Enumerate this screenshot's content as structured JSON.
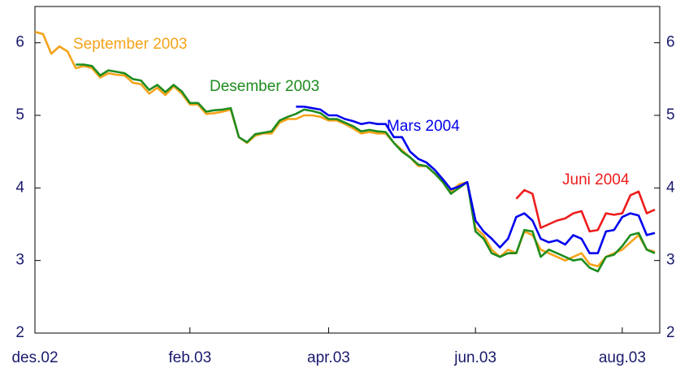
{
  "chart_data": {
    "type": "line",
    "categories": [
      "des.02",
      null,
      null,
      null,
      null,
      null,
      null,
      null,
      null,
      null,
      null,
      null,
      null,
      null,
      null,
      null,
      null,
      null,
      null,
      "feb.03",
      null,
      null,
      null,
      null,
      null,
      null,
      null,
      null,
      null,
      null,
      null,
      null,
      null,
      null,
      null,
      null,
      "apr.03",
      null,
      null,
      null,
      null,
      null,
      null,
      null,
      null,
      null,
      null,
      null,
      null,
      null,
      null,
      null,
      null,
      null,
      "jun.03",
      null,
      null,
      null,
      null,
      null,
      null,
      null,
      null,
      null,
      null,
      null,
      null,
      null,
      null,
      null,
      null,
      null,
      "aug.03",
      null,
      null,
      null,
      null
    ],
    "series": [
      {
        "name": "September 2003",
        "color": "#f5a31a",
        "values": [
          6.15,
          6.12,
          5.85,
          5.95,
          5.88,
          5.65,
          5.68,
          5.65,
          5.52,
          5.58,
          5.56,
          5.55,
          5.45,
          5.43,
          5.3,
          5.38,
          5.28,
          5.4,
          5.3,
          5.15,
          5.15,
          5.02,
          5.03,
          5.05,
          5.08,
          4.7,
          4.62,
          4.72,
          4.75,
          4.75,
          4.9,
          4.95,
          4.95,
          5.0,
          5.0,
          4.98,
          4.93,
          4.93,
          4.88,
          4.82,
          4.75,
          4.77,
          4.75,
          4.75,
          4.62,
          4.52,
          4.42,
          4.3,
          4.3,
          4.2,
          4.1,
          3.95,
          4.05,
          4.08,
          3.45,
          3.35,
          3.15,
          3.05,
          3.15,
          3.1,
          3.4,
          3.35,
          3.15,
          3.1,
          3.05,
          3.0,
          3.05,
          3.1,
          2.95,
          2.92,
          3.05,
          3.1,
          3.15,
          3.25,
          3.35,
          3.15,
          3.12
        ]
      },
      {
        "name": "Desember 2003",
        "color": "#1e8c1e",
        "values": [
          null,
          null,
          null,
          null,
          null,
          5.7,
          5.7,
          5.68,
          5.55,
          5.62,
          5.6,
          5.58,
          5.5,
          5.48,
          5.35,
          5.42,
          5.32,
          5.42,
          5.33,
          5.17,
          5.17,
          5.05,
          5.07,
          5.08,
          5.1,
          4.7,
          4.63,
          4.74,
          4.76,
          4.78,
          4.93,
          4.98,
          5.02,
          5.08,
          5.06,
          5.03,
          4.95,
          4.95,
          4.9,
          4.85,
          4.78,
          4.8,
          4.78,
          4.77,
          4.62,
          4.5,
          4.42,
          4.32,
          4.3,
          4.2,
          4.08,
          3.92,
          4.0,
          4.08,
          3.4,
          3.3,
          3.1,
          3.05,
          3.1,
          3.1,
          3.42,
          3.4,
          3.05,
          3.15,
          3.1,
          3.05,
          3.0,
          3.02,
          2.9,
          2.85,
          3.05,
          3.08,
          3.2,
          3.35,
          3.38,
          3.15,
          3.1
        ]
      },
      {
        "name": "Mars 2004",
        "color": "#0000ee",
        "values": [
          null,
          null,
          null,
          null,
          null,
          null,
          null,
          null,
          null,
          null,
          null,
          null,
          null,
          null,
          null,
          null,
          null,
          null,
          null,
          null,
          null,
          null,
          null,
          null,
          null,
          null,
          null,
          null,
          null,
          null,
          null,
          null,
          5.12,
          5.12,
          5.1,
          5.08,
          5.0,
          5.0,
          4.95,
          4.92,
          4.88,
          4.9,
          4.88,
          4.88,
          4.7,
          4.7,
          4.5,
          4.4,
          4.35,
          4.25,
          4.12,
          3.98,
          4.02,
          4.08,
          3.55,
          3.4,
          3.3,
          3.18,
          3.3,
          3.6,
          3.65,
          3.55,
          3.3,
          3.25,
          3.28,
          3.22,
          3.35,
          3.3,
          3.1,
          3.1,
          3.4,
          3.42,
          3.6,
          3.65,
          3.62,
          3.35,
          3.38
        ]
      },
      {
        "name": "Juni 2004",
        "color": "#ee1c1c",
        "values": [
          null,
          null,
          null,
          null,
          null,
          null,
          null,
          null,
          null,
          null,
          null,
          null,
          null,
          null,
          null,
          null,
          null,
          null,
          null,
          null,
          null,
          null,
          null,
          null,
          null,
          null,
          null,
          null,
          null,
          null,
          null,
          null,
          null,
          null,
          null,
          null,
          null,
          null,
          null,
          null,
          null,
          null,
          null,
          null,
          null,
          null,
          null,
          null,
          null,
          null,
          null,
          null,
          null,
          null,
          null,
          null,
          null,
          null,
          null,
          3.85,
          3.97,
          3.92,
          3.45,
          3.5,
          3.55,
          3.58,
          3.65,
          3.68,
          3.4,
          3.42,
          3.65,
          3.63,
          3.65,
          3.9,
          3.95,
          3.65,
          3.7
        ]
      }
    ],
    "ylim": [
      2,
      6.5
    ],
    "yticks": [
      2,
      3,
      4,
      5,
      6
    ],
    "y2lim": [
      2,
      6.5
    ],
    "y2ticks": [
      2,
      3,
      4,
      5,
      6
    ]
  }
}
